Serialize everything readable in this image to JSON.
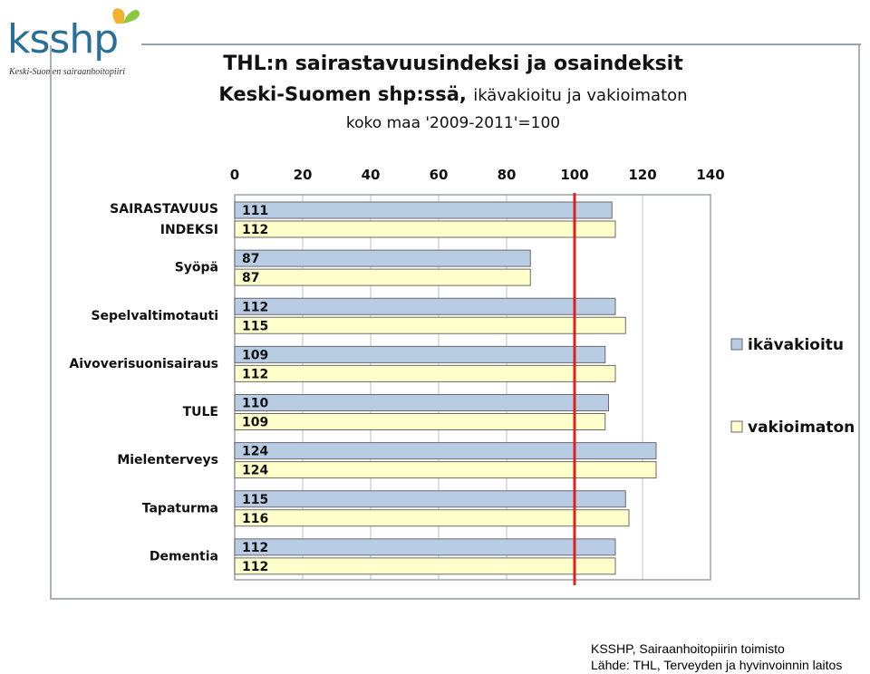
{
  "logo": {
    "name": "ksshp",
    "subtitle": "Keski-Suomen sairaanhoitopiiri"
  },
  "header": {
    "title_line1": "THL:n sairastavuusindeksi ja osaindeksit",
    "title_line2_bold": "Keski-Suomen shp:ssä,",
    "title_line2_normal": "ikävakioitu ja vakioimaton",
    "title_line3": "koko maa '2009-2011'=100"
  },
  "colors": {
    "series1": "#b8cce4",
    "series2": "#ffffcc",
    "reference_line": "#e02020",
    "bar_border": "#6a6a6a"
  },
  "chart_data": {
    "type": "bar",
    "orientation": "horizontal",
    "categories": [
      "SAIRASTAVUUS INDEKSI",
      "Syöpä",
      "Sepelvaltimotauti",
      "Aivoverisuonisairaus",
      "TULE",
      "Mielenterveys",
      "Tapaturma",
      "Dementia"
    ],
    "category_lines": [
      [
        "SAIRASTAVUUS",
        "INDEKSI"
      ],
      [
        "Syöpä"
      ],
      [
        "Sepelvaltimotauti"
      ],
      [
        "Aivoverisuonisairaus"
      ],
      [
        "TULE"
      ],
      [
        "Mielenterveys"
      ],
      [
        "Tapaturma"
      ],
      [
        "Dementia"
      ]
    ],
    "series": [
      {
        "name": "ikävakioitu",
        "values": [
          111,
          87,
          112,
          109,
          110,
          124,
          115,
          112
        ]
      },
      {
        "name": "vakioimaton",
        "values": [
          112,
          87,
          115,
          112,
          109,
          124,
          116,
          112
        ]
      }
    ],
    "xlim": [
      0,
      140
    ],
    "ticks": [
      0,
      20,
      40,
      60,
      80,
      100,
      120,
      140
    ],
    "tick_labels": [
      "0",
      "20",
      "40",
      "60",
      "80",
      "100",
      "120",
      "140"
    ],
    "reference_value": 100,
    "grid": true,
    "legend_position": "right",
    "xlabel": "",
    "ylabel": ""
  },
  "source": {
    "line1": "KSSHP, Sairaanhoitopiirin toimisto",
    "line2": "Lähde:  THL, Terveyden ja hyvinvoinnin laitos"
  }
}
